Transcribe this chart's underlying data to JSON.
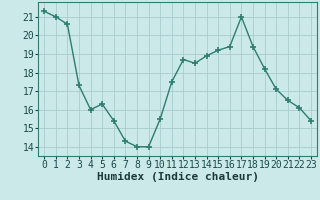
{
  "x": [
    0,
    1,
    2,
    3,
    4,
    5,
    6,
    7,
    8,
    9,
    10,
    11,
    12,
    13,
    14,
    15,
    16,
    17,
    18,
    19,
    20,
    21,
    22,
    23
  ],
  "y": [
    21.3,
    21.0,
    20.6,
    17.3,
    16.0,
    16.3,
    15.4,
    14.3,
    14.0,
    14.0,
    15.5,
    17.5,
    18.7,
    18.5,
    18.9,
    19.2,
    19.4,
    21.0,
    19.4,
    18.2,
    17.1,
    16.5,
    16.1,
    15.4
  ],
  "line_color": "#2e7d6e",
  "bg_color": "#cce9e9",
  "grid_color": "#aacccc",
  "xlabel": "Humidex (Indice chaleur)",
  "ylim": [
    13.5,
    21.8
  ],
  "xlim": [
    -0.5,
    23.5
  ],
  "yticks": [
    14,
    15,
    16,
    17,
    18,
    19,
    20,
    21
  ],
  "xticks": [
    0,
    1,
    2,
    3,
    4,
    5,
    6,
    7,
    8,
    9,
    10,
    11,
    12,
    13,
    14,
    15,
    16,
    17,
    18,
    19,
    20,
    21,
    22,
    23
  ],
  "marker": "+",
  "markersize": 4,
  "linewidth": 1.0,
  "tick_fontsize": 7,
  "xlabel_fontsize": 8,
  "xlabel_fontweight": "bold"
}
